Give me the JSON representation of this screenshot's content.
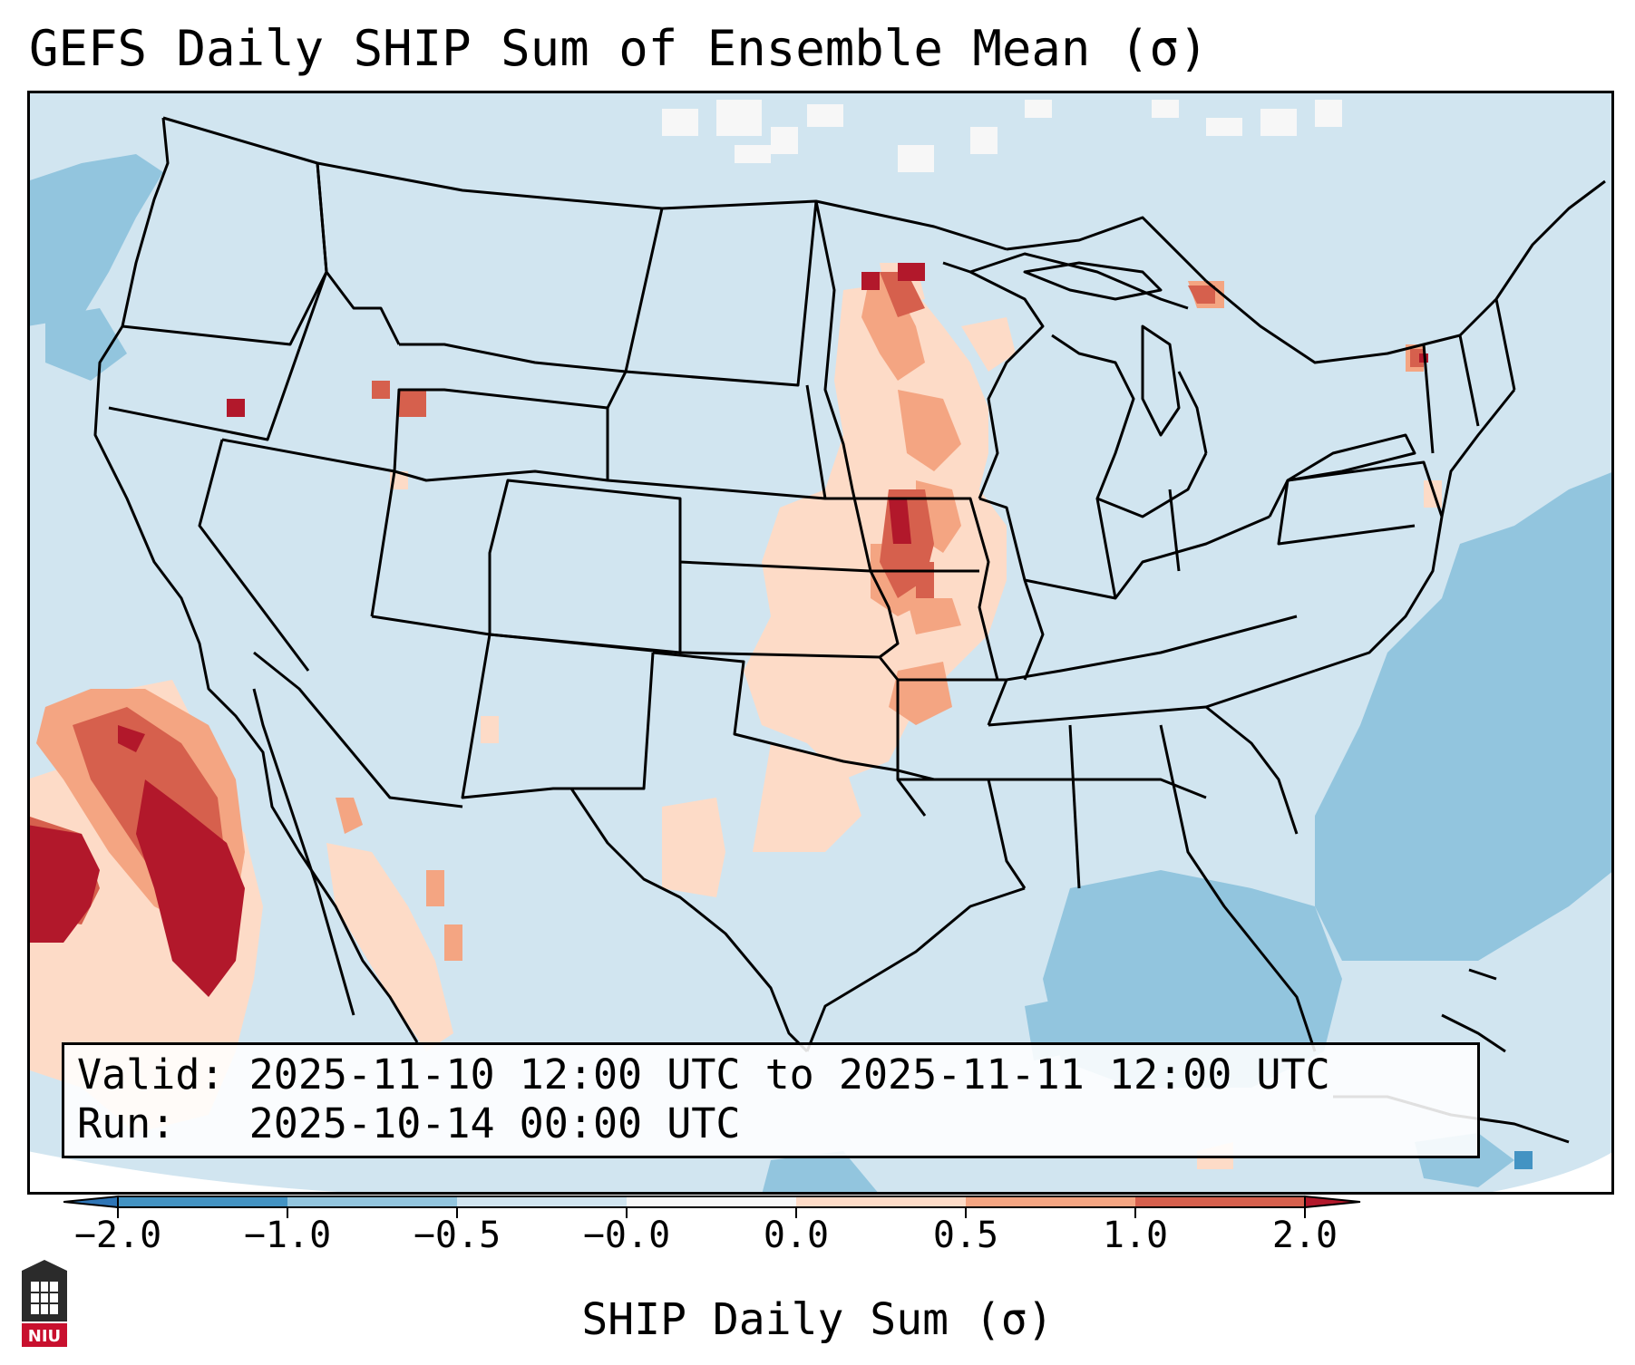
{
  "title": "GEFS Daily SHIP Sum of Ensemble Mean (σ)",
  "info": {
    "valid": "Valid: 2025-11-10 12:00 UTC to 2025-11-11 12:00 UTC",
    "run": "Run:   2025-10-14 00:00 UTC"
  },
  "colorbar": {
    "label": "SHIP Daily Sum (σ)",
    "ticks": [
      "−2.0",
      "−1.0",
      "−0.5",
      "−0.0",
      "0.0",
      "0.5",
      "1.0",
      "2.0"
    ],
    "colors": {
      "extend_low": "#2e75b6",
      "c1": "#4393c3",
      "c2": "#92c5de",
      "c3": "#d1e5f0",
      "c4": "#f7f7f7",
      "c5": "#fddbc7",
      "c6": "#f4a582",
      "c7": "#d6604d",
      "extend_high": "#b2182b"
    }
  },
  "map": {
    "background_color": "#d1e5f0",
    "state_line_color": "#000000"
  },
  "logo": {
    "text": "NIU",
    "icon": "university-seal-icon"
  }
}
